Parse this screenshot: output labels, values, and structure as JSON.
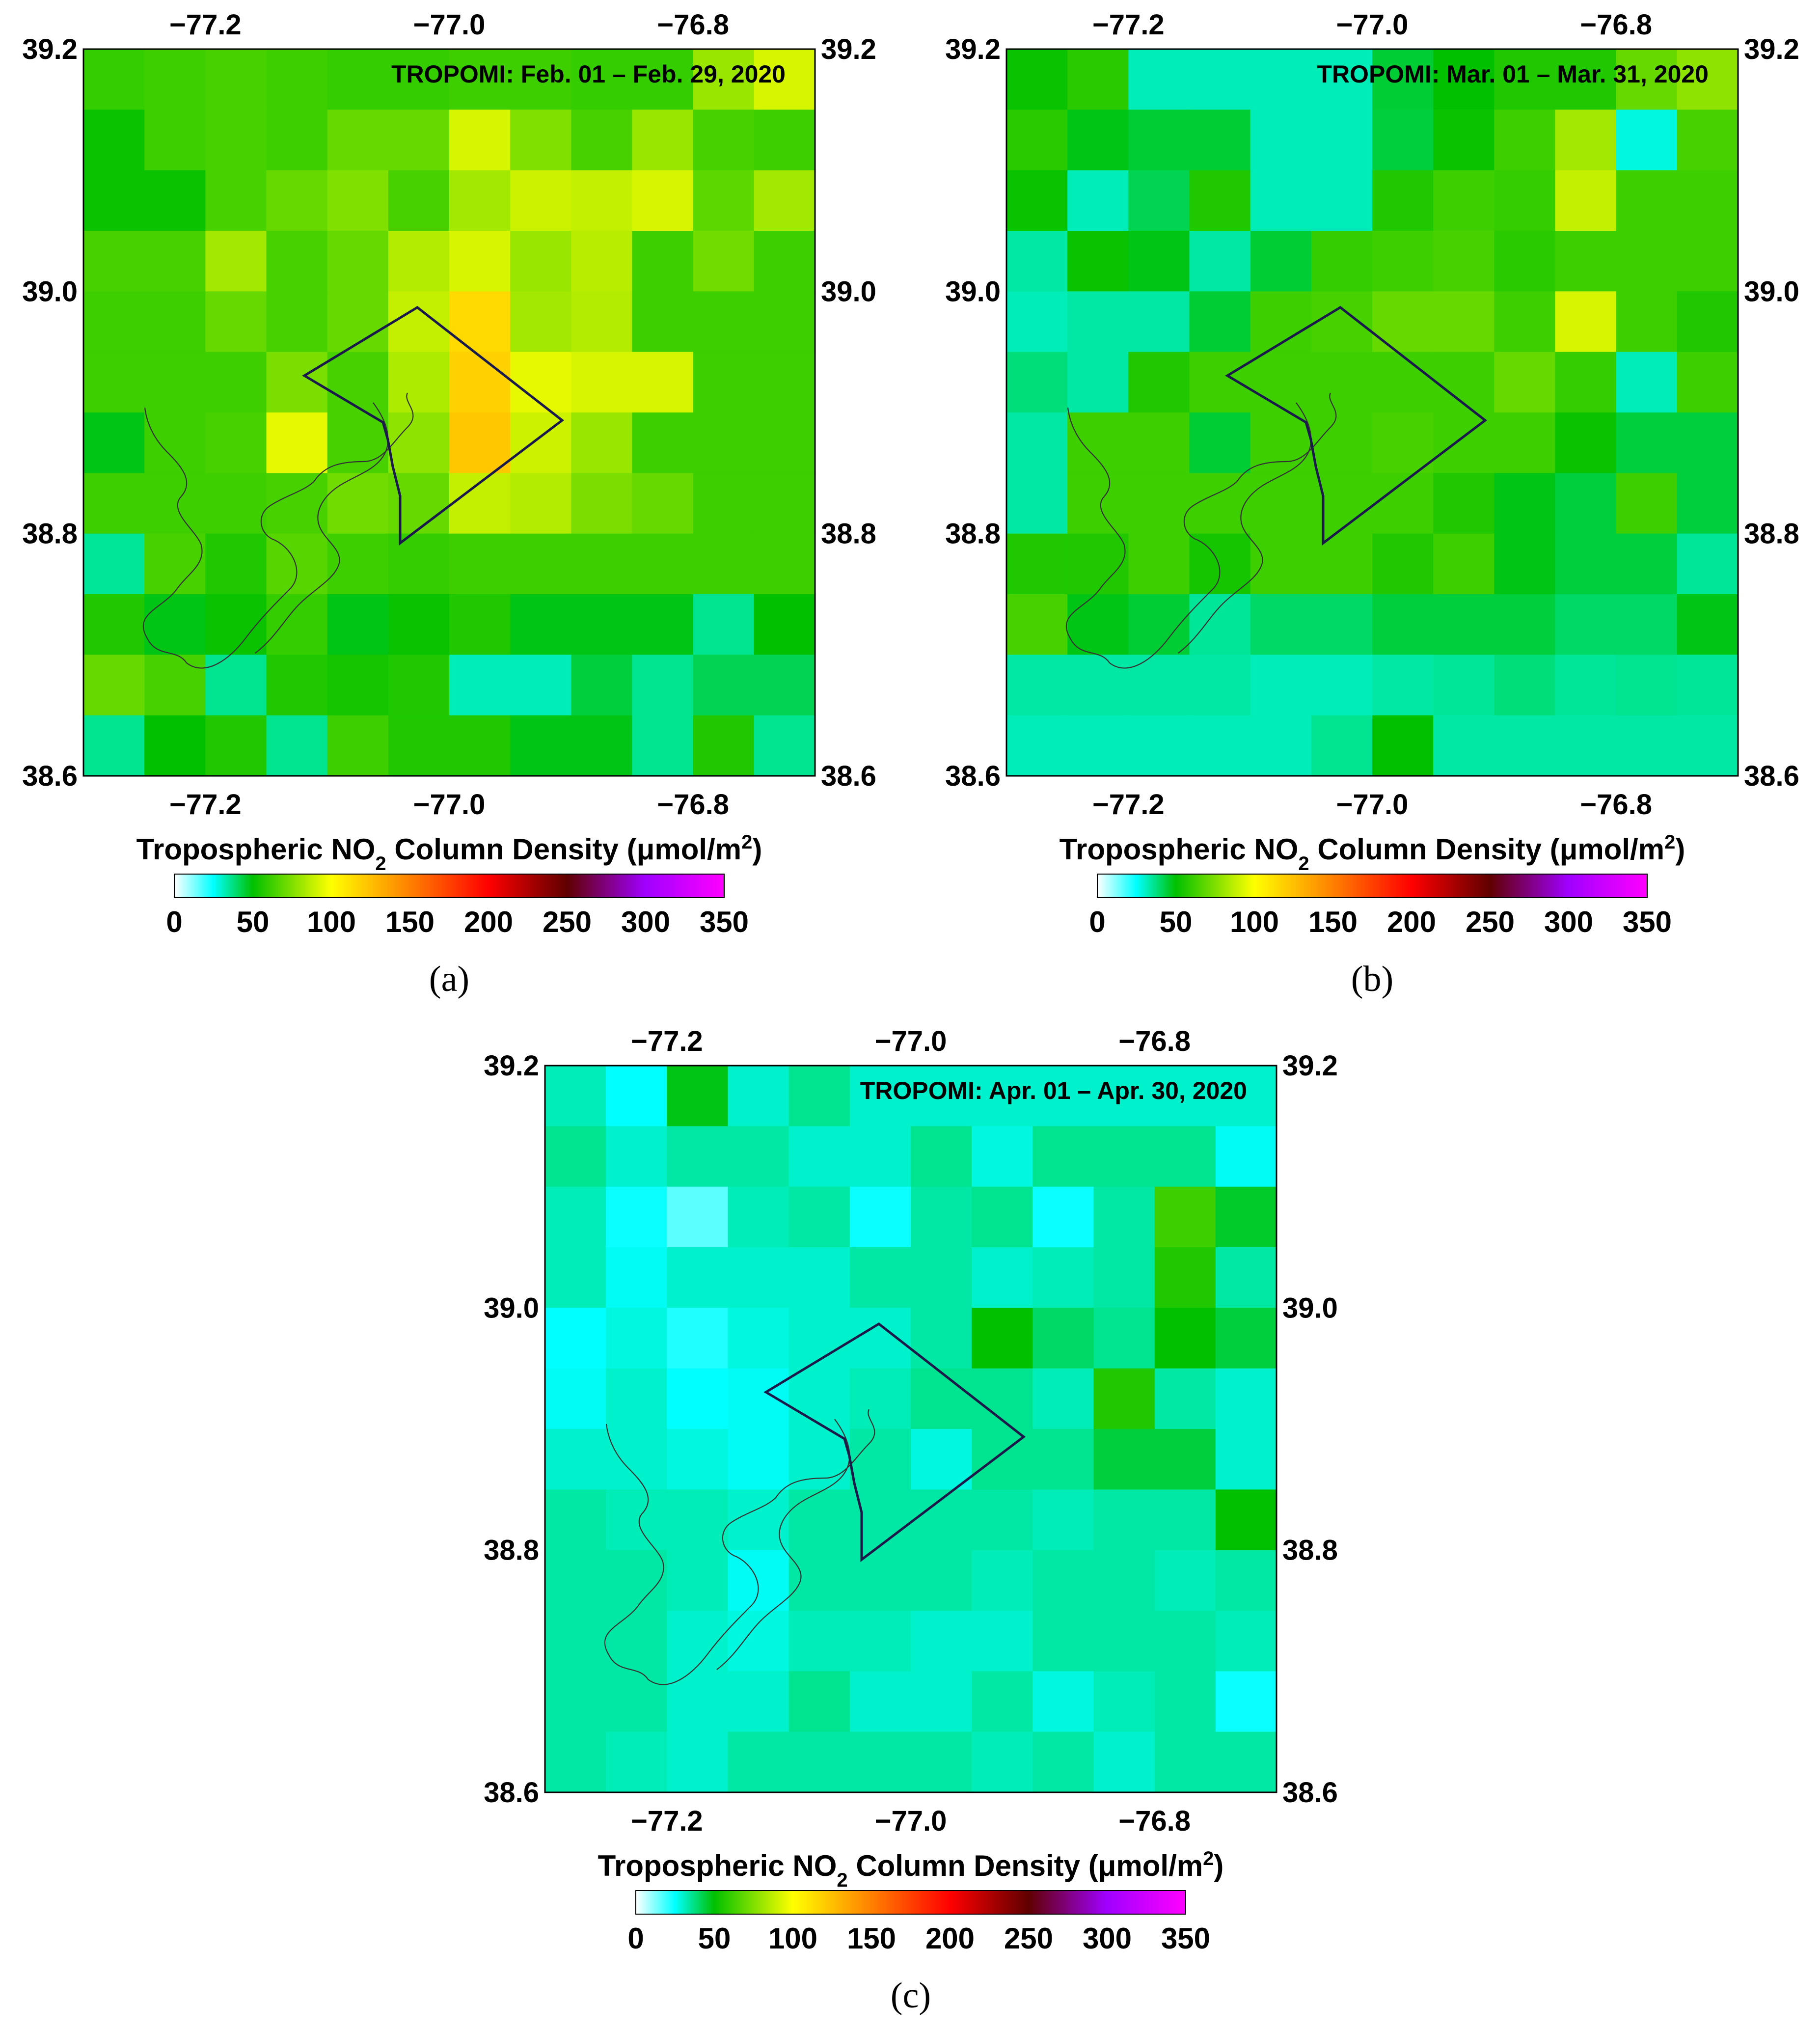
{
  "figure": {
    "colorbar": {
      "title_pre": "Tropospheric NO",
      "title_sub": "2",
      "title_post": " Column Density (μmol/m",
      "title_sup": "2",
      "title_end": ")",
      "ticks": [
        "0",
        "50",
        "100",
        "150",
        "200",
        "250",
        "300",
        "350"
      ],
      "range": [
        0,
        350
      ],
      "colors": [
        "#ffffff",
        "#00ffff",
        "#00c000",
        "#ffff00",
        "#ff8000",
        "#ff0000",
        "#600000",
        "#a000ff",
        "#ff00ff"
      ]
    },
    "axes": {
      "lon_ticks": [
        "−77.2",
        "−77.0",
        "−76.8"
      ],
      "lat_ticks": [
        "39.2",
        "39.0",
        "38.8",
        "38.6"
      ]
    }
  },
  "chart_data": [
    {
      "type": "heatmap",
      "panel": "a",
      "label": "(a)",
      "title": "TROPOMI: Feb. 01 – Feb. 29, 2020",
      "lon_range": [
        -77.3,
        -76.7
      ],
      "lat_range": [
        38.6,
        39.2
      ],
      "rows": 12,
      "cols": 12,
      "values": [
        [
          60,
          62,
          64,
          62,
          60,
          60,
          62,
          62,
          60,
          60,
          80,
          92
        ],
        [
          52,
          62,
          64,
          62,
          70,
          70,
          92,
          75,
          64,
          80,
          64,
          62
        ],
        [
          52,
          52,
          64,
          70,
          75,
          64,
          82,
          90,
          88,
          92,
          68,
          82
        ],
        [
          64,
          64,
          82,
          64,
          70,
          85,
          92,
          80,
          86,
          62,
          72,
          62
        ],
        [
          62,
          62,
          70,
          64,
          70,
          88,
          115,
          82,
          85,
          62,
          62,
          62
        ],
        [
          62,
          62,
          62,
          74,
          64,
          84,
          118,
          95,
          92,
          92,
          62,
          62
        ],
        [
          48,
          62,
          64,
          95,
          64,
          78,
          122,
          90,
          80,
          62,
          62,
          62
        ],
        [
          62,
          62,
          62,
          64,
          72,
          70,
          88,
          85,
          74,
          70,
          62,
          62
        ],
        [
          35,
          64,
          56,
          67,
          62,
          60,
          62,
          62,
          62,
          62,
          62,
          62
        ],
        [
          56,
          48,
          52,
          60,
          48,
          52,
          56,
          48,
          48,
          48,
          36,
          50
        ],
        [
          70,
          64,
          36,
          56,
          54,
          56,
          32,
          32,
          44,
          36,
          42,
          42
        ],
        [
          36,
          50,
          56,
          36,
          62,
          56,
          56,
          48,
          48,
          36,
          56,
          36
        ]
      ]
    },
    {
      "type": "heatmap",
      "panel": "b",
      "label": "(b)",
      "title": "TROPOMI: Mar. 01 – Mar. 31, 2020",
      "lon_range": [
        -77.3,
        -76.7
      ],
      "lat_range": [
        38.6,
        39.2
      ],
      "rows": 12,
      "cols": 12,
      "values": [
        [
          52,
          58,
          32,
          32,
          32,
          32,
          45,
          50,
          56,
          56,
          70,
          78
        ],
        [
          58,
          48,
          45,
          45,
          32,
          32,
          44,
          52,
          62,
          82,
          28,
          64
        ],
        [
          52,
          32,
          42,
          56,
          32,
          32,
          56,
          62,
          60,
          88,
          62,
          62
        ],
        [
          34,
          52,
          48,
          34,
          45,
          60,
          62,
          64,
          58,
          62,
          62,
          62
        ],
        [
          32,
          34,
          34,
          45,
          62,
          64,
          70,
          70,
          62,
          92,
          62,
          56
        ],
        [
          38,
          34,
          56,
          62,
          62,
          62,
          62,
          62,
          70,
          60,
          32,
          62
        ],
        [
          34,
          62,
          62,
          45,
          62,
          62,
          64,
          62,
          62,
          52,
          44,
          44
        ],
        [
          34,
          62,
          62,
          62,
          62,
          62,
          62,
          56,
          48,
          44,
          62,
          44
        ],
        [
          56,
          56,
          62,
          54,
          62,
          62,
          56,
          62,
          48,
          44,
          44,
          35
        ],
        [
          64,
          48,
          45,
          35,
          40,
          40,
          44,
          44,
          44,
          40,
          40,
          48
        ],
        [
          34,
          34,
          34,
          34,
          32,
          32,
          34,
          35,
          38,
          35,
          36,
          35
        ],
        [
          32,
          32,
          32,
          32,
          32,
          36,
          50,
          34,
          34,
          34,
          34,
          34
        ]
      ]
    },
    {
      "type": "heatmap",
      "panel": "c",
      "label": "(c)",
      "title": "TROPOMI: Apr. 01 – Apr. 30, 2020",
      "lon_range": [
        -77.3,
        -76.7
      ],
      "lat_range": [
        38.6,
        39.2
      ],
      "rows": 12,
      "cols": 12,
      "values": [
        [
          32,
          25,
          48,
          30,
          36,
          30,
          30,
          30,
          30,
          30,
          30,
          30
        ],
        [
          36,
          30,
          34,
          34,
          30,
          30,
          36,
          28,
          36,
          36,
          36,
          26
        ],
        [
          32,
          24,
          16,
          32,
          34,
          24,
          34,
          36,
          24,
          34,
          62,
          46
        ],
        [
          32,
          26,
          30,
          30,
          30,
          34,
          34,
          30,
          32,
          34,
          56,
          34
        ],
        [
          25,
          28,
          22,
          28,
          30,
          30,
          34,
          50,
          40,
          36,
          50,
          44
        ],
        [
          26,
          30,
          25,
          26,
          30,
          32,
          36,
          36,
          32,
          56,
          34,
          30
        ],
        [
          30,
          30,
          28,
          26,
          30,
          34,
          28,
          36,
          36,
          44,
          44,
          30
        ],
        [
          34,
          32,
          32,
          30,
          34,
          34,
          34,
          34,
          32,
          34,
          34,
          50
        ],
        [
          34,
          34,
          32,
          26,
          34,
          34,
          34,
          32,
          34,
          34,
          32,
          34
        ],
        [
          34,
          34,
          30,
          28,
          32,
          32,
          30,
          30,
          34,
          34,
          34,
          32
        ],
        [
          34,
          34,
          30,
          30,
          36,
          30,
          30,
          34,
          28,
          32,
          34,
          24
        ],
        [
          34,
          32,
          30,
          34,
          34,
          34,
          34,
          32,
          34,
          30,
          34,
          34
        ]
      ]
    }
  ]
}
